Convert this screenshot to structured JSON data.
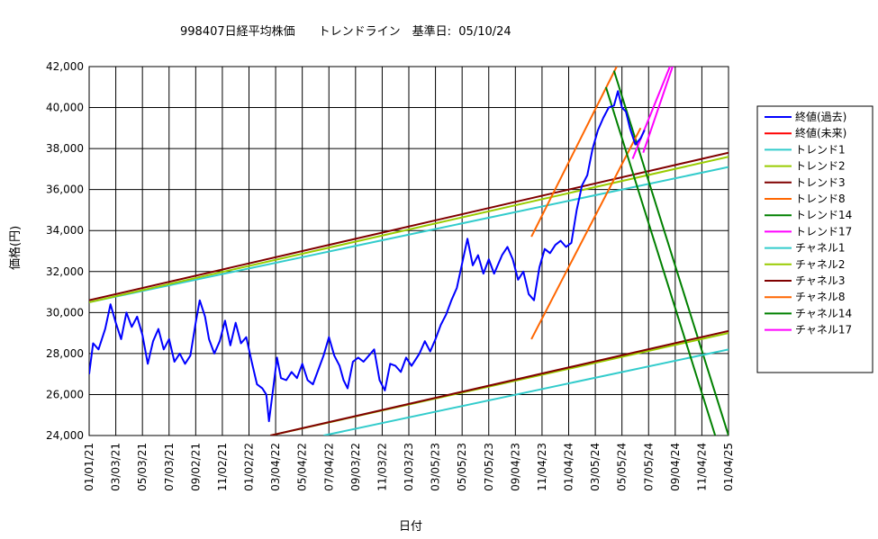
{
  "title": "998407日経平均株価　　トレンドライン　基準日:  05/10/24",
  "chart_data": {
    "type": "line",
    "title": "998407日経平均株価　　トレンドライン　基準日:  05/10/24",
    "xlabel": "日付",
    "ylabel": "価格(円)",
    "ylim": [
      24000,
      42000
    ],
    "y_ticks": [
      "24,000",
      "26,000",
      "28,000",
      "30,000",
      "32,000",
      "34,000",
      "36,000",
      "38,000",
      "40,000",
      "42,000"
    ],
    "x_ticks": [
      "01/01/21",
      "03/03/21",
      "05/03/21",
      "07/03/21",
      "09/02/21",
      "11/02/21",
      "01/02/22",
      "03/04/22",
      "05/04/22",
      "07/04/22",
      "09/03/22",
      "11/03/22",
      "01/03/23",
      "03/05/23",
      "05/05/23",
      "07/05/23",
      "09/04/23",
      "11/04/23",
      "01/04/24",
      "03/05/24",
      "05/05/24",
      "07/05/24",
      "09/04/24",
      "11/04/24",
      "01/04/25"
    ],
    "grid": true,
    "legend_position": "right",
    "series": [
      {
        "name": "終値(過去)",
        "color": "#0000ff",
        "width": 2,
        "points": [
          [
            0,
            27000
          ],
          [
            0.15,
            28500
          ],
          [
            0.35,
            28200
          ],
          [
            0.6,
            29200
          ],
          [
            0.8,
            30400
          ],
          [
            1.0,
            29500
          ],
          [
            1.2,
            28700
          ],
          [
            1.4,
            30000
          ],
          [
            1.6,
            29300
          ],
          [
            1.8,
            29800
          ],
          [
            2.0,
            28900
          ],
          [
            2.2,
            27500
          ],
          [
            2.4,
            28600
          ],
          [
            2.6,
            29200
          ],
          [
            2.8,
            28200
          ],
          [
            3.0,
            28700
          ],
          [
            3.2,
            27600
          ],
          [
            3.4,
            28000
          ],
          [
            3.6,
            27500
          ],
          [
            3.8,
            27900
          ],
          [
            4.0,
            29500
          ],
          [
            4.15,
            30600
          ],
          [
            4.35,
            29800
          ],
          [
            4.5,
            28700
          ],
          [
            4.7,
            28000
          ],
          [
            4.9,
            28600
          ],
          [
            5.1,
            29600
          ],
          [
            5.3,
            28400
          ],
          [
            5.5,
            29500
          ],
          [
            5.7,
            28500
          ],
          [
            5.9,
            28800
          ],
          [
            6.1,
            27600
          ],
          [
            6.3,
            26500
          ],
          [
            6.5,
            26300
          ],
          [
            6.65,
            26000
          ],
          [
            6.75,
            24700
          ],
          [
            6.9,
            26200
          ],
          [
            7.05,
            27800
          ],
          [
            7.2,
            26800
          ],
          [
            7.4,
            26700
          ],
          [
            7.6,
            27100
          ],
          [
            7.8,
            26800
          ],
          [
            8.0,
            27500
          ],
          [
            8.2,
            26700
          ],
          [
            8.4,
            26500
          ],
          [
            8.6,
            27200
          ],
          [
            8.8,
            27900
          ],
          [
            9.0,
            28800
          ],
          [
            9.2,
            27900
          ],
          [
            9.4,
            27400
          ],
          [
            9.55,
            26700
          ],
          [
            9.7,
            26300
          ],
          [
            9.9,
            27600
          ],
          [
            10.1,
            27800
          ],
          [
            10.3,
            27600
          ],
          [
            10.5,
            27900
          ],
          [
            10.7,
            28200
          ],
          [
            10.9,
            26700
          ],
          [
            11.1,
            26200
          ],
          [
            11.3,
            27500
          ],
          [
            11.5,
            27400
          ],
          [
            11.7,
            27100
          ],
          [
            11.9,
            27800
          ],
          [
            12.1,
            27400
          ],
          [
            12.4,
            28000
          ],
          [
            12.6,
            28600
          ],
          [
            12.8,
            28100
          ],
          [
            13.0,
            28700
          ],
          [
            13.2,
            29400
          ],
          [
            13.4,
            29900
          ],
          [
            13.6,
            30600
          ],
          [
            13.8,
            31200
          ],
          [
            14.0,
            32400
          ],
          [
            14.2,
            33600
          ],
          [
            14.4,
            32300
          ],
          [
            14.6,
            32800
          ],
          [
            14.8,
            31900
          ],
          [
            15.0,
            32600
          ],
          [
            15.2,
            31900
          ],
          [
            15.5,
            32800
          ],
          [
            15.7,
            33200
          ],
          [
            15.9,
            32600
          ],
          [
            16.1,
            31600
          ],
          [
            16.3,
            32000
          ],
          [
            16.5,
            30900
          ],
          [
            16.7,
            30600
          ],
          [
            16.9,
            32200
          ],
          [
            17.1,
            33100
          ],
          [
            17.3,
            32900
          ],
          [
            17.5,
            33300
          ],
          [
            17.7,
            33500
          ],
          [
            17.9,
            33200
          ],
          [
            18.1,
            33400
          ],
          [
            18.3,
            35000
          ],
          [
            18.5,
            36200
          ],
          [
            18.7,
            36700
          ],
          [
            18.9,
            38000
          ],
          [
            19.1,
            38900
          ],
          [
            19.3,
            39500
          ],
          [
            19.5,
            40000
          ],
          [
            19.7,
            40100
          ],
          [
            19.85,
            40800
          ],
          [
            20.0,
            40000
          ],
          [
            20.15,
            39800
          ],
          [
            20.3,
            39000
          ],
          [
            20.5,
            38200
          ],
          [
            20.7,
            38500
          ],
          [
            20.85,
            38900
          ]
        ]
      },
      {
        "name": "終値(未来)",
        "color": "#ff0000",
        "width": 1,
        "points": []
      },
      {
        "name": "トレンド1",
        "color": "#33cccc",
        "width": 2,
        "points": [
          [
            0,
            30500
          ],
          [
            24,
            37100
          ]
        ]
      },
      {
        "name": "トレンド2",
        "color": "#99cc00",
        "width": 2,
        "points": [
          [
            0,
            30500
          ],
          [
            24,
            37600
          ]
        ]
      },
      {
        "name": "トレンド3",
        "color": "#800000",
        "width": 2,
        "points": [
          [
            0,
            30600
          ],
          [
            24,
            37800
          ]
        ]
      },
      {
        "name": "トレンド8",
        "color": "#ff6600",
        "width": 2,
        "points": [
          [
            16.6,
            33700
          ],
          [
            19.8,
            42000
          ]
        ]
      },
      {
        "name": "トレンド14",
        "color": "#008000",
        "width": 2,
        "points": [
          [
            19.7,
            41800
          ],
          [
            24,
            24000
          ]
        ]
      },
      {
        "name": "トレンド17",
        "color": "#ff00ff",
        "width": 2,
        "points": [
          [
            20.4,
            37500
          ],
          [
            21.8,
            42000
          ]
        ]
      },
      {
        "name": "チャネル1",
        "color": "#33cccc",
        "width": 2,
        "points": [
          [
            8.8,
            24000
          ],
          [
            24,
            28200
          ]
        ]
      },
      {
        "name": "チャネル2",
        "color": "#99cc00",
        "width": 2,
        "points": [
          [
            6.8,
            24000
          ],
          [
            24,
            29000
          ]
        ]
      },
      {
        "name": "チャネル3",
        "color": "#800000",
        "width": 2,
        "points": [
          [
            6.8,
            24000
          ],
          [
            24,
            29100
          ]
        ]
      },
      {
        "name": "チャネル8",
        "color": "#ff6600",
        "width": 2,
        "points": [
          [
            16.6,
            28700
          ],
          [
            20.7,
            39000
          ]
        ]
      },
      {
        "name": "チャネル14",
        "color": "#008000",
        "width": 2,
        "points": [
          [
            19.4,
            41000
          ],
          [
            23.5,
            24000
          ]
        ]
      },
      {
        "name": "チャネル17",
        "color": "#ff00ff",
        "width": 2,
        "points": [
          [
            20.8,
            37800
          ],
          [
            21.9,
            42000
          ]
        ]
      }
    ]
  }
}
